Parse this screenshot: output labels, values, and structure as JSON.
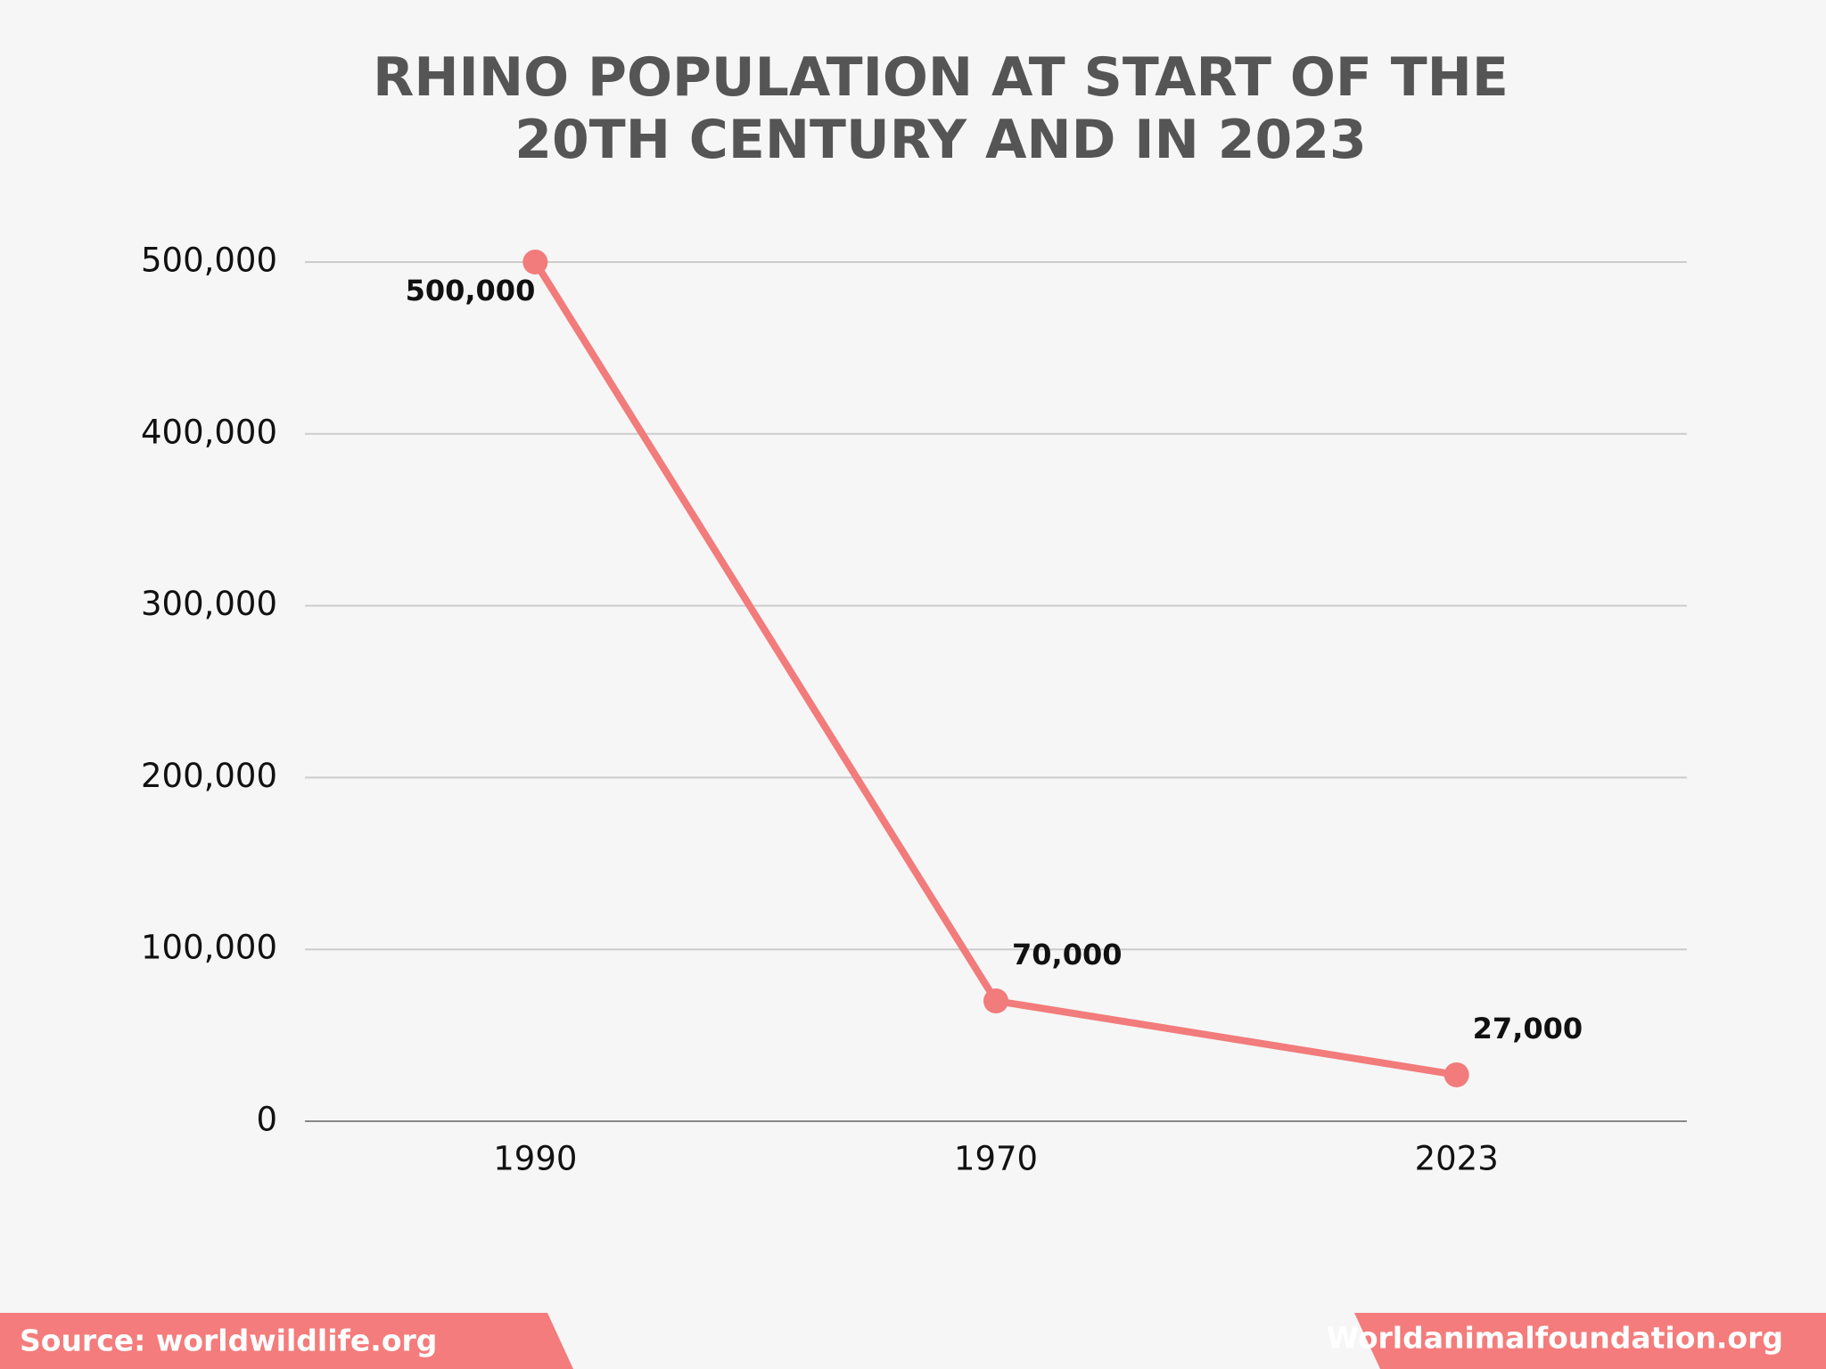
{
  "chart_data": {
    "type": "line",
    "title": "RHINO POPULATION AT START OF THE 20TH CENTURY AND IN 2023",
    "categories": [
      "1990",
      "1970",
      "2023"
    ],
    "values": [
      500000,
      70000,
      27000
    ],
    "value_labels": [
      "500,000",
      "70,000",
      "27,000"
    ],
    "color": "#f27b7b",
    "ylim": [
      0,
      500000
    ],
    "yticks": [
      0,
      {
        "value": 100000,
        "label": "100,000"
      },
      {
        "value": 200000,
        "label": "200,000"
      },
      {
        "value": 300000,
        "label": "300,000"
      },
      {
        "value": 400000,
        "label": "400,000"
      },
      {
        "value": 500000,
        "label": "500,000"
      }
    ],
    "grid": true,
    "source": "Source: worldwildlife.org",
    "credit": "Worldanimalfoundation.org"
  }
}
